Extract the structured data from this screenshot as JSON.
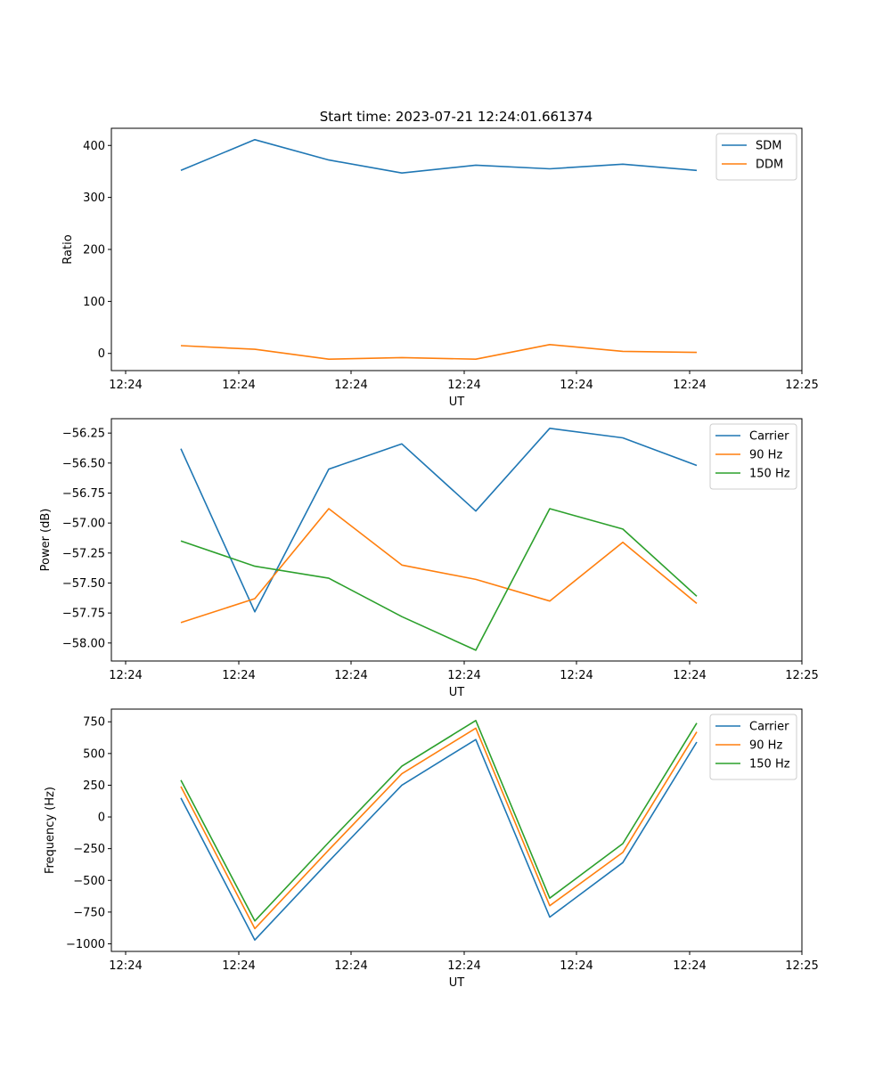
{
  "figure": {
    "title": "Start time: 2023-07-21 12:24:01.661374"
  },
  "chart_data": [
    {
      "type": "line",
      "title": "Start time: 2023-07-21 12:24:01.661374",
      "xlabel": "UT",
      "ylabel": "Ratio",
      "x_tick_labels": [
        "12:24",
        "12:24",
        "12:24",
        "12:24",
        "12:24",
        "12:24",
        "12:25"
      ],
      "y_ticks": [
        0,
        100,
        200,
        300,
        400
      ],
      "y_tick_labels": [
        "0",
        "100",
        "200",
        "300",
        "400"
      ],
      "ylim": [
        -33,
        433
      ],
      "legend_position": "top-right",
      "series": [
        {
          "name": "SDM",
          "color": "#1f77b4",
          "values": [
            352,
            411,
            372,
            347,
            362,
            355,
            364,
            352
          ]
        },
        {
          "name": "DDM",
          "color": "#ff7f0e",
          "values": [
            15,
            8,
            -11,
            -8,
            -11,
            17,
            4,
            2
          ]
        }
      ]
    },
    {
      "type": "line",
      "title": "",
      "xlabel": "UT",
      "ylabel": "Power (dB)",
      "x_tick_labels": [
        "12:24",
        "12:24",
        "12:24",
        "12:24",
        "12:24",
        "12:24",
        "12:25"
      ],
      "y_ticks": [
        -58.0,
        -57.75,
        -57.5,
        -57.25,
        -57.0,
        -56.75,
        -56.5,
        -56.25
      ],
      "y_tick_labels": [
        "−58.00",
        "−57.75",
        "−57.50",
        "−57.25",
        "−57.00",
        "−56.75",
        "−56.50",
        "−56.25"
      ],
      "ylim": [
        -58.15,
        -56.13
      ],
      "legend_position": "top-right",
      "series": [
        {
          "name": "Carrier",
          "color": "#1f77b4",
          "values": [
            -56.38,
            -57.74,
            -56.55,
            -56.34,
            -56.9,
            -56.21,
            -56.29,
            -56.52
          ]
        },
        {
          "name": "90 Hz",
          "color": "#ff7f0e",
          "values": [
            -57.83,
            -57.63,
            -56.88,
            -57.35,
            -57.47,
            -57.65,
            -57.16,
            -57.67
          ]
        },
        {
          "name": "150 Hz",
          "color": "#2ca02c",
          "values": [
            -57.15,
            -57.36,
            -57.46,
            -57.78,
            -58.06,
            -56.88,
            -57.05,
            -57.61
          ]
        }
      ]
    },
    {
      "type": "line",
      "title": "",
      "xlabel": "UT",
      "ylabel": "Frequency (Hz)",
      "x_tick_labels": [
        "12:24",
        "12:24",
        "12:24",
        "12:24",
        "12:24",
        "12:24",
        "12:25"
      ],
      "y_ticks": [
        -1000,
        -750,
        -500,
        -250,
        0,
        250,
        500,
        750
      ],
      "y_tick_labels": [
        "−1000",
        "−750",
        "−500",
        "−250",
        "0",
        "250",
        "500",
        "750"
      ],
      "ylim": [
        -1060,
        850
      ],
      "legend_position": "top-right",
      "series": [
        {
          "name": "Carrier",
          "color": "#1f77b4",
          "values": [
            150,
            -970,
            -350,
            250,
            610,
            -790,
            -360,
            590
          ]
        },
        {
          "name": "90 Hz",
          "color": "#ff7f0e",
          "values": [
            240,
            -880,
            -260,
            340,
            700,
            -700,
            -280,
            670
          ]
        },
        {
          "name": "150 Hz",
          "color": "#2ca02c",
          "values": [
            290,
            -820,
            -200,
            400,
            760,
            -640,
            -210,
            740
          ]
        }
      ]
    }
  ]
}
